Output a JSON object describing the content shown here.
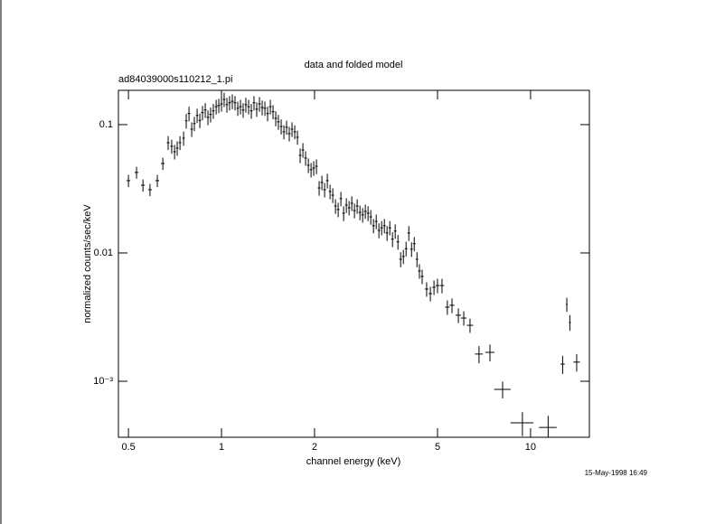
{
  "chart_data": {
    "type": "scatter",
    "title": "data and folded model",
    "subtitle": "ad84039000s110212_1.pi",
    "x_label": "channel energy (keV)",
    "y_label": "normalized counts/sec/keV",
    "timestamp": "15-May-1998 16:49",
    "color": "#000000",
    "xlog": true,
    "ylog": true,
    "xlim": [
      0.464,
      15.5
    ],
    "ylim": [
      0.000366,
      0.185
    ],
    "xticks": [
      0.5,
      1,
      2,
      5,
      10
    ],
    "yticks": [
      0.1,
      0.01,
      {
        "value": 0.001,
        "label": "10⁻³"
      }
    ],
    "x": [
      0.5,
      0.531,
      0.557,
      0.587,
      0.62,
      0.646,
      0.672,
      0.69,
      0.705,
      0.719,
      0.734,
      0.754,
      0.769,
      0.785,
      0.801,
      0.817,
      0.834,
      0.851,
      0.868,
      0.886,
      0.904,
      0.922,
      0.941,
      0.961,
      0.98,
      1.0,
      1.02,
      1.041,
      1.062,
      1.084,
      1.106,
      1.129,
      1.152,
      1.175,
      1.199,
      1.224,
      1.249,
      1.274,
      1.3,
      1.327,
      1.354,
      1.382,
      1.41,
      1.439,
      1.468,
      1.498,
      1.528,
      1.56,
      1.592,
      1.624,
      1.657,
      1.691,
      1.726,
      1.761,
      1.797,
      1.834,
      1.871,
      1.91,
      1.949,
      1.988,
      2.029,
      2.07,
      2.113,
      2.156,
      2.2,
      2.245,
      2.291,
      2.338,
      2.385,
      2.434,
      2.484,
      2.535,
      2.587,
      2.64,
      2.693,
      2.748,
      2.805,
      2.862,
      2.92,
      2.98,
      3.041,
      3.103,
      3.167,
      3.231,
      3.297,
      3.365,
      3.433,
      3.504,
      3.575,
      3.648,
      3.723,
      3.799,
      3.877,
      3.956,
      4.037,
      4.12,
      4.204,
      4.29,
      4.369,
      4.459,
      4.61,
      4.74,
      4.87,
      5.0,
      5.17,
      5.38,
      5.57,
      5.84,
      6.08,
      6.37,
      6.81,
      7.39,
      8.12,
      9.41,
      11.4,
      12.7,
      13.1,
      13.4,
      14.1
    ],
    "xerr": [
      0.007,
      0.0075,
      0.008,
      0.008,
      0.009,
      0.009,
      0.007,
      0.007,
      0.007,
      0.007,
      0.007,
      0.007,
      0.007,
      0.008,
      0.008,
      0.008,
      0.008,
      0.009,
      0.009,
      0.009,
      0.009,
      0.009,
      0.009,
      0.01,
      0.01,
      0.01,
      0.01,
      0.01,
      0.011,
      0.011,
      0.011,
      0.011,
      0.012,
      0.012,
      0.012,
      0.012,
      0.012,
      0.013,
      0.013,
      0.013,
      0.014,
      0.014,
      0.014,
      0.014,
      0.015,
      0.015,
      0.015,
      0.016,
      0.016,
      0.016,
      0.017,
      0.017,
      0.017,
      0.018,
      0.018,
      0.018,
      0.019,
      0.019,
      0.02,
      0.02,
      0.02,
      0.021,
      0.021,
      0.022,
      0.022,
      0.022,
      0.023,
      0.023,
      0.024,
      0.024,
      0.025,
      0.025,
      0.026,
      0.026,
      0.027,
      0.027,
      0.028,
      0.029,
      0.029,
      0.03,
      0.03,
      0.031,
      0.032,
      0.032,
      0.033,
      0.034,
      0.034,
      0.035,
      0.036,
      0.036,
      0.037,
      0.038,
      0.039,
      0.04,
      0.04,
      0.041,
      0.042,
      0.043,
      0.045,
      0.05,
      0.06,
      0.06,
      0.06,
      0.07,
      0.08,
      0.09,
      0.1,
      0.12,
      0.13,
      0.15,
      0.2,
      0.25,
      0.5,
      0.8,
      0.75,
      0.2,
      0.08,
      0.1,
      0.35
    ],
    "values": [
      0.0366,
      0.0424,
      0.0337,
      0.0311,
      0.0366,
      0.0498,
      0.0723,
      0.0678,
      0.0615,
      0.0656,
      0.0723,
      0.0784,
      0.107,
      0.122,
      0.0922,
      0.102,
      0.118,
      0.108,
      0.124,
      0.13,
      0.114,
      0.12,
      0.128,
      0.138,
      0.141,
      0.145,
      0.157,
      0.143,
      0.148,
      0.152,
      0.148,
      0.134,
      0.138,
      0.13,
      0.143,
      0.138,
      0.128,
      0.148,
      0.132,
      0.145,
      0.136,
      0.134,
      0.122,
      0.138,
      0.126,
      0.112,
      0.105,
      0.0968,
      0.0878,
      0.0953,
      0.085,
      0.0922,
      0.0878,
      0.0797,
      0.0576,
      0.0635,
      0.0549,
      0.0482,
      0.0445,
      0.0459,
      0.0474,
      0.0321,
      0.0354,
      0.0311,
      0.0366,
      0.0301,
      0.0282,
      0.0232,
      0.0218,
      0.0265,
      0.0204,
      0.0236,
      0.0225,
      0.0244,
      0.0214,
      0.0232,
      0.0207,
      0.0198,
      0.0211,
      0.0204,
      0.0191,
      0.0163,
      0.0176,
      0.015,
      0.0157,
      0.0163,
      0.0143,
      0.0157,
      0.0128,
      0.0148,
      0.0122,
      0.00893,
      0.00938,
      0.0108,
      0.0143,
      0.0107,
      0.0118,
      0.00893,
      0.00723,
      0.00656,
      0.00523,
      0.00482,
      0.0054,
      0.00557,
      0.00557,
      0.00378,
      0.00391,
      0.00327,
      0.00311,
      0.00273,
      0.00163,
      0.00168,
      0.000865,
      0.000474,
      0.000437,
      0.00136,
      0.00397,
      0.00287,
      0.00141
    ],
    "yerr": [
      0.004,
      0.0045,
      0.0037,
      0.0034,
      0.004,
      0.0055,
      0.009,
      0.0085,
      0.008,
      0.0085,
      0.009,
      0.01,
      0.014,
      0.016,
      0.012,
      0.013,
      0.015,
      0.014,
      0.016,
      0.017,
      0.015,
      0.016,
      0.017,
      0.018,
      0.018,
      0.019,
      0.02,
      0.019,
      0.019,
      0.02,
      0.019,
      0.017,
      0.018,
      0.017,
      0.019,
      0.018,
      0.017,
      0.019,
      0.017,
      0.019,
      0.018,
      0.017,
      0.016,
      0.018,
      0.016,
      0.015,
      0.014,
      0.013,
      0.011,
      0.012,
      0.011,
      0.012,
      0.011,
      0.01,
      0.0075,
      0.0083,
      0.0071,
      0.0063,
      0.0058,
      0.006,
      0.0062,
      0.0042,
      0.0046,
      0.004,
      0.0048,
      0.0039,
      0.0037,
      0.003,
      0.0028,
      0.0034,
      0.0027,
      0.0031,
      0.0029,
      0.0032,
      0.0028,
      0.003,
      0.0027,
      0.0026,
      0.0027,
      0.0027,
      0.0025,
      0.0021,
      0.0023,
      0.002,
      0.002,
      0.0021,
      0.0019,
      0.002,
      0.0017,
      0.0019,
      0.0016,
      0.0012,
      0.0012,
      0.0014,
      0.0019,
      0.0014,
      0.0015,
      0.0012,
      0.00094,
      0.00085,
      0.00068,
      0.00063,
      0.0007,
      0.00072,
      0.00072,
      0.00049,
      0.00051,
      0.00043,
      0.0004,
      0.00035,
      0.00025,
      0.00025,
      0.00013,
      0.0001,
      0.0001,
      0.00022,
      0.0005,
      0.0004,
      0.00022
    ]
  }
}
